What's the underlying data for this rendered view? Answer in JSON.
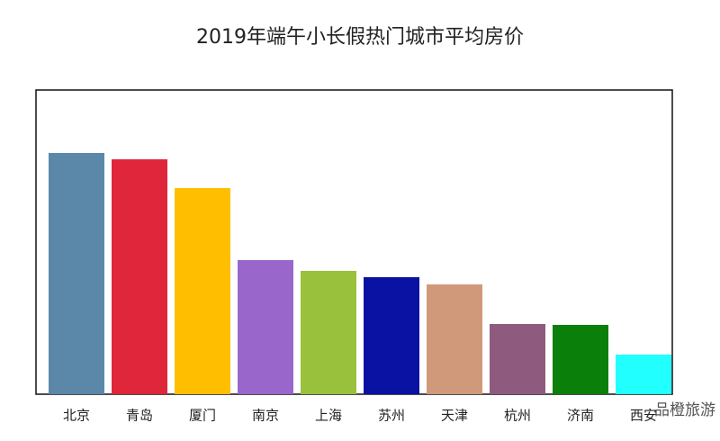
{
  "chart_data": {
    "type": "bar",
    "title": "2019年端午小长假热门城市平均房价",
    "categories": [
      "北京",
      "青岛",
      "厦门",
      "南京",
      "上海",
      "苏州",
      "天津",
      "杭州",
      "济南",
      "西安"
    ],
    "values": [
      268,
      261,
      229,
      149,
      137,
      130,
      122,
      78,
      77,
      44
    ],
    "colors": [
      "#5b87a8",
      "#e0263a",
      "#ffbf00",
      "#9966cc",
      "#99c13c",
      "#0a12a3",
      "#d09a7a",
      "#8e5b7f",
      "#0a7f0a",
      "#22ffff"
    ],
    "ylim": [
      0,
      338
    ],
    "grid": false
  },
  "watermark": "品橙旅游"
}
